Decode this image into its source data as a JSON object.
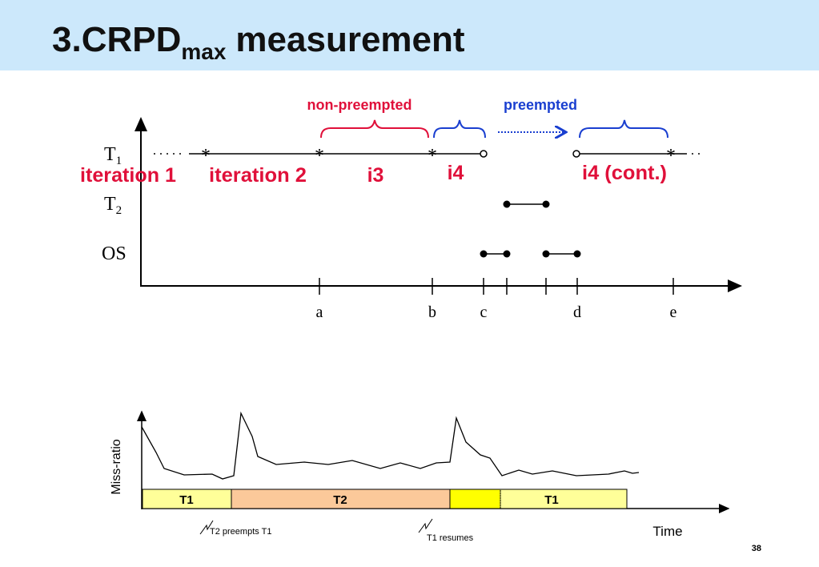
{
  "header": {
    "title": "3.CRPD",
    "title_sub": "max",
    "title_rest": "measurement"
  },
  "timeline": {
    "brace_labels": {
      "non_preempted": "non-preempted",
      "preempted": "preempted"
    },
    "rows": [
      {
        "name": "T",
        "sub": "1"
      },
      {
        "name": "T",
        "sub": "2"
      },
      {
        "name": "OS"
      }
    ],
    "iteration_labels": [
      "iteration 1",
      "iteration 2",
      "i3",
      "i4",
      "i4 (cont.)"
    ],
    "marker": "*",
    "ticks": [
      "a",
      "b",
      "c",
      "d",
      "e"
    ]
  },
  "miss_ratio_chart": {
    "y_label": "Miss-ratio",
    "x_label": "Time",
    "segments": [
      "T1",
      "T2",
      "T1"
    ],
    "annotations": [
      "T2 preempts T1",
      "T1 resumes"
    ]
  },
  "footer": {
    "page_number": "38"
  }
}
